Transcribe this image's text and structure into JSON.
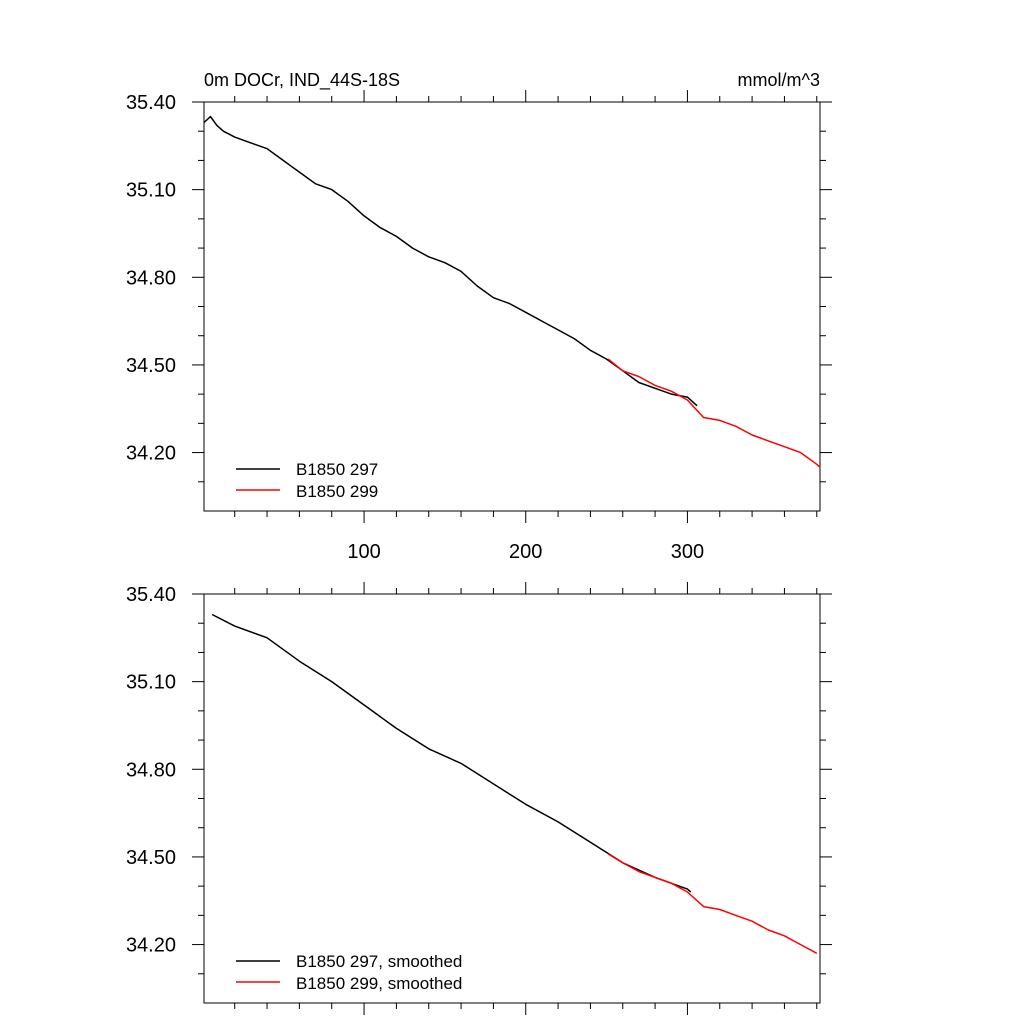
{
  "colors": {
    "series_1": "#000000",
    "series_2": "#ff0000",
    "axis": "#000000"
  },
  "chart_data": [
    {
      "type": "line",
      "title": "0m DOCr, IND_44S-18S",
      "units": "mmol/m^3",
      "xlim": [
        1,
        382
      ],
      "ylim": [
        34.0,
        35.4
      ],
      "xticks": [
        100,
        200,
        300
      ],
      "xticklabels": [
        "100",
        "200",
        "300"
      ],
      "yticks": [
        34.2,
        34.5,
        34.8,
        35.1,
        35.4
      ],
      "yticklabels": [
        "34.20",
        "34.50",
        "34.80",
        "35.10",
        "35.40"
      ],
      "grid": false,
      "legend_position": "bottom-left",
      "series": [
        {
          "name": "B1850 297",
          "color": "#000000",
          "x": [
            1,
            5,
            9,
            13,
            20,
            30,
            40,
            50,
            55,
            60,
            70,
            80,
            90,
            100,
            110,
            120,
            130,
            140,
            150,
            160,
            170,
            180,
            190,
            200,
            210,
            220,
            230,
            240,
            250,
            260,
            270,
            280,
            290,
            300,
            306
          ],
          "y": [
            35.33,
            35.35,
            35.32,
            35.3,
            35.28,
            35.26,
            35.24,
            35.2,
            35.18,
            35.16,
            35.12,
            35.1,
            35.06,
            35.01,
            34.97,
            34.94,
            34.9,
            34.87,
            34.85,
            34.82,
            34.77,
            34.73,
            34.71,
            34.68,
            34.65,
            34.62,
            34.59,
            34.55,
            34.52,
            34.48,
            34.44,
            34.42,
            34.4,
            34.39,
            34.36
          ]
        },
        {
          "name": "B1850 299",
          "color": "#ff0000",
          "x": [
            251,
            260,
            270,
            280,
            290,
            300,
            310,
            320,
            330,
            340,
            350,
            360,
            370,
            380,
            382
          ],
          "y": [
            34.52,
            34.48,
            34.46,
            34.43,
            34.41,
            34.38,
            34.32,
            34.31,
            34.29,
            34.26,
            34.24,
            34.22,
            34.2,
            34.16,
            34.15
          ]
        }
      ]
    },
    {
      "type": "line",
      "xlim": [
        1,
        382
      ],
      "ylim": [
        34.0,
        35.4
      ],
      "xticks": [
        100,
        200,
        300
      ],
      "yticks": [
        34.2,
        34.5,
        34.8,
        35.1,
        35.4
      ],
      "yticklabels": [
        "34.20",
        "34.50",
        "34.80",
        "35.10",
        "35.40"
      ],
      "grid": false,
      "legend_position": "bottom-left",
      "series": [
        {
          "name": "B1850 297, smoothed",
          "color": "#000000",
          "x": [
            6,
            20,
            40,
            60,
            80,
            100,
            120,
            140,
            160,
            180,
            200,
            220,
            240,
            260,
            280,
            300,
            302
          ],
          "y": [
            35.33,
            35.29,
            35.25,
            35.17,
            35.1,
            35.02,
            34.94,
            34.87,
            34.82,
            34.75,
            34.68,
            34.62,
            34.55,
            34.48,
            34.43,
            34.39,
            34.38
          ]
        },
        {
          "name": "B1850 299, smoothed",
          "color": "#ff0000",
          "x": [
            251,
            260,
            270,
            280,
            290,
            300,
            310,
            320,
            330,
            340,
            350,
            360,
            370,
            380
          ],
          "y": [
            34.51,
            34.48,
            34.45,
            34.43,
            34.41,
            34.38,
            34.33,
            34.32,
            34.3,
            34.28,
            34.25,
            34.23,
            34.2,
            34.17
          ]
        }
      ]
    }
  ]
}
